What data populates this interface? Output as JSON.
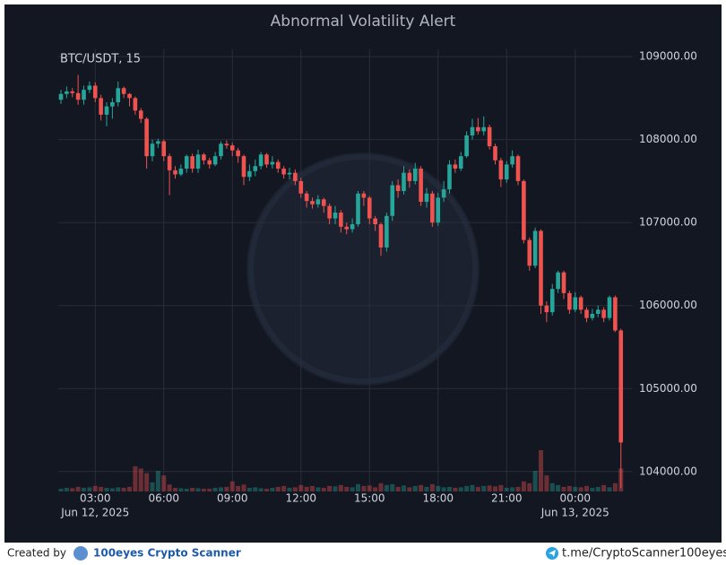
{
  "chart_data": {
    "type": "candlestick",
    "title": "Abnormal Volatility Alert",
    "symbol": "BTC/USDT, 15",
    "up_color": "#26a69a",
    "down_color": "#ef5350",
    "grid": true,
    "x": [
      "2025-06-12 01:30",
      "2025-06-12 01:45",
      "2025-06-12 02:00",
      "2025-06-12 02:15",
      "2025-06-12 02:30",
      "2025-06-12 02:45",
      "2025-06-12 03:00",
      "2025-06-12 03:15",
      "2025-06-12 03:30",
      "2025-06-12 03:45",
      "2025-06-12 04:00",
      "2025-06-12 04:15",
      "2025-06-12 04:30",
      "2025-06-12 04:45",
      "2025-06-12 05:00",
      "2025-06-12 05:15",
      "2025-06-12 05:30",
      "2025-06-12 05:45",
      "2025-06-12 06:00",
      "2025-06-12 06:15",
      "2025-06-12 06:30",
      "2025-06-12 06:45",
      "2025-06-12 07:00",
      "2025-06-12 07:15",
      "2025-06-12 07:30",
      "2025-06-12 07:45",
      "2025-06-12 08:00",
      "2025-06-12 08:15",
      "2025-06-12 08:30",
      "2025-06-12 08:45",
      "2025-06-12 09:00",
      "2025-06-12 09:15",
      "2025-06-12 09:30",
      "2025-06-12 09:45",
      "2025-06-12 10:00",
      "2025-06-12 10:15",
      "2025-06-12 10:30",
      "2025-06-12 10:45",
      "2025-06-12 11:00",
      "2025-06-12 11:15",
      "2025-06-12 11:30",
      "2025-06-12 11:45",
      "2025-06-12 12:00",
      "2025-06-12 12:15",
      "2025-06-12 12:30",
      "2025-06-12 12:45",
      "2025-06-12 13:00",
      "2025-06-12 13:15",
      "2025-06-12 13:30",
      "2025-06-12 13:45",
      "2025-06-12 14:00",
      "2025-06-12 14:15",
      "2025-06-12 14:30",
      "2025-06-12 14:45",
      "2025-06-12 15:00",
      "2025-06-12 15:15",
      "2025-06-12 15:30",
      "2025-06-12 15:45",
      "2025-06-12 16:00",
      "2025-06-12 16:15",
      "2025-06-12 16:30",
      "2025-06-12 16:45",
      "2025-06-12 17:00",
      "2025-06-12 17:15",
      "2025-06-12 17:30",
      "2025-06-12 17:45",
      "2025-06-12 18:00",
      "2025-06-12 18:15",
      "2025-06-12 18:30",
      "2025-06-12 18:45",
      "2025-06-12 19:00",
      "2025-06-12 19:15",
      "2025-06-12 19:30",
      "2025-06-12 19:45",
      "2025-06-12 20:00",
      "2025-06-12 20:15",
      "2025-06-12 20:30",
      "2025-06-12 20:45",
      "2025-06-12 21:00",
      "2025-06-12 21:15",
      "2025-06-12 21:30",
      "2025-06-12 21:45",
      "2025-06-12 22:00",
      "2025-06-12 22:15",
      "2025-06-12 22:30",
      "2025-06-12 22:45",
      "2025-06-12 23:00",
      "2025-06-12 23:15",
      "2025-06-12 23:30",
      "2025-06-12 23:45",
      "2025-06-13 00:00",
      "2025-06-13 00:15",
      "2025-06-13 00:30",
      "2025-06-13 00:45",
      "2025-06-13 01:00",
      "2025-06-13 01:15",
      "2025-06-13 01:30",
      "2025-06-13 01:45",
      "2025-06-13 02:00"
    ],
    "open": [
      108480,
      108550,
      108580,
      108560,
      108480,
      108600,
      108650,
      108500,
      108300,
      108400,
      108450,
      108620,
      108550,
      108500,
      108350,
      108250,
      107800,
      107950,
      107980,
      107800,
      107630,
      107580,
      107650,
      107800,
      107650,
      107820,
      107750,
      107700,
      107800,
      107950,
      107930,
      107870,
      107800,
      107550,
      107620,
      107680,
      107820,
      107700,
      107730,
      107650,
      107580,
      107600,
      107500,
      107350,
      107260,
      107220,
      107280,
      107200,
      107050,
      107120,
      106950,
      106920,
      106980,
      107350,
      107300,
      107050,
      106980,
      106700,
      107080,
      107450,
      107380,
      107600,
      107500,
      107650,
      107250,
      107350,
      107000,
      107300,
      107400,
      107700,
      107650,
      107800,
      108050,
      108150,
      108100,
      108150,
      107920,
      107750,
      107520,
      107700,
      107800,
      107500,
      106790,
      106480,
      106900,
      106000,
      105920,
      106200,
      106400,
      106150,
      105950,
      106100,
      105950,
      105850,
      105900,
      105950,
      105850,
      106100,
      105700
    ],
    "high": [
      108600,
      108640,
      108620,
      108780,
      108650,
      108700,
      108690,
      108540,
      108450,
      108500,
      108700,
      108640,
      108560,
      108520,
      108380,
      108270,
      108000,
      108010,
      108000,
      107830,
      107680,
      107700,
      107820,
      107830,
      107880,
      107840,
      107780,
      107850,
      107980,
      107990,
      107960,
      107900,
      107820,
      107700,
      107760,
      107850,
      107840,
      107800,
      107760,
      107680,
      107660,
      107640,
      107540,
      107380,
      107300,
      107330,
      107300,
      107230,
      107200,
      107150,
      107000,
      107050,
      107380,
      107380,
      107320,
      107080,
      107000,
      107120,
      107500,
      107520,
      107680,
      107640,
      107720,
      107680,
      107420,
      107380,
      107360,
      107500,
      107750,
      107760,
      107850,
      108100,
      108250,
      108260,
      108280,
      108180,
      107950,
      107780,
      107740,
      107870,
      107820,
      107520,
      106820,
      106940,
      106920,
      106050,
      106260,
      106420,
      106420,
      106180,
      106160,
      106120,
      105980,
      105960,
      106000,
      105980,
      106120,
      106120,
      105720
    ],
    "low": [
      108430,
      108500,
      108510,
      108420,
      108420,
      108560,
      108450,
      108230,
      108160,
      108250,
      108400,
      108500,
      108400,
      108300,
      108200,
      107650,
      107740,
      107900,
      107740,
      107330,
      107530,
      107560,
      107600,
      107600,
      107600,
      107700,
      107650,
      107680,
      107760,
      107890,
      107800,
      107720,
      107450,
      107500,
      107560,
      107640,
      107660,
      107650,
      107600,
      107530,
      107520,
      107450,
      107300,
      107180,
      107170,
      107180,
      107120,
      106980,
      106980,
      106880,
      106860,
      106880,
      106950,
      107200,
      106980,
      106900,
      106600,
      106650,
      107020,
      107300,
      107340,
      107420,
      107460,
      107200,
      107180,
      106950,
      106960,
      107250,
      107350,
      107600,
      107620,
      107780,
      108000,
      108060,
      108050,
      107880,
      107700,
      107430,
      107480,
      107660,
      107450,
      106750,
      106420,
      106450,
      105900,
      105800,
      105880,
      106150,
      106080,
      105900,
      105920,
      105900,
      105800,
      105820,
      105860,
      105800,
      105820,
      105680,
      103800
    ],
    "close": [
      108550,
      108580,
      108560,
      108480,
      108600,
      108650,
      108500,
      108300,
      108400,
      108450,
      108620,
      108550,
      108500,
      108350,
      108250,
      107800,
      107950,
      107980,
      107800,
      107630,
      107580,
      107650,
      107800,
      107650,
      107820,
      107750,
      107700,
      107800,
      107950,
      107930,
      107870,
      107800,
      107550,
      107620,
      107680,
      107820,
      107700,
      107730,
      107650,
      107580,
      107600,
      107500,
      107350,
      107260,
      107220,
      107280,
      107200,
      107050,
      107120,
      106950,
      106920,
      106980,
      107350,
      107300,
      107050,
      106980,
      106700,
      107080,
      107450,
      107380,
      107600,
      107500,
      107650,
      107250,
      107350,
      107000,
      107300,
      107400,
      107700,
      107650,
      107800,
      108050,
      108150,
      108100,
      108150,
      107920,
      107750,
      107520,
      107700,
      107800,
      107500,
      106790,
      106480,
      106900,
      106000,
      105920,
      106200,
      106400,
      106150,
      105950,
      106100,
      105950,
      105850,
      105900,
      105950,
      105850,
      106100,
      105700,
      104350
    ],
    "volume": [
      6,
      8,
      7,
      10,
      8,
      9,
      12,
      10,
      8,
      7,
      9,
      8,
      10,
      55,
      50,
      40,
      20,
      45,
      35,
      15,
      8,
      7,
      6,
      8,
      7,
      6,
      6,
      8,
      9,
      10,
      22,
      12,
      15,
      8,
      9,
      7,
      6,
      8,
      10,
      12,
      8,
      9,
      14,
      10,
      12,
      9,
      8,
      12,
      11,
      14,
      10,
      9,
      16,
      12,
      13,
      9,
      18,
      14,
      16,
      10,
      13,
      9,
      12,
      14,
      10,
      16,
      12,
      9,
      10,
      8,
      9,
      12,
      14,
      10,
      12,
      13,
      11,
      14,
      8,
      9,
      10,
      22,
      18,
      45,
      90,
      35,
      18,
      14,
      10,
      12,
      10,
      9,
      12,
      8,
      10,
      14,
      9,
      18,
      50
    ],
    "ylim": [
      103760,
      109120
    ],
    "yticks": [
      {
        "value": 104000,
        "label": "104000.00"
      },
      {
        "value": 105000,
        "label": "105000.00"
      },
      {
        "value": 106000,
        "label": "106000.00"
      },
      {
        "value": 107000,
        "label": "107000.00"
      },
      {
        "value": 108000,
        "label": "108000.00"
      },
      {
        "value": 109000,
        "label": "109000.00"
      }
    ],
    "xticks": [
      {
        "value": "2025-06-12 03:00",
        "label": "03:00"
      },
      {
        "value": "2025-06-12 06:00",
        "label": "06:00"
      },
      {
        "value": "2025-06-12 09:00",
        "label": "09:00"
      },
      {
        "value": "2025-06-12 12:00",
        "label": "12:00"
      },
      {
        "value": "2025-06-12 15:00",
        "label": "15:00"
      },
      {
        "value": "2025-06-12 18:00",
        "label": "18:00"
      },
      {
        "value": "2025-06-12 21:00",
        "label": "21:00"
      },
      {
        "value": "2025-06-13 00:00",
        "label": "00:00"
      }
    ],
    "date_labels": [
      {
        "value": "2025-06-12 03:00",
        "label": "Jun 12, 2025"
      },
      {
        "value": "2025-06-13 00:00",
        "label": "Jun 13, 2025"
      }
    ]
  },
  "footer": {
    "created_by": "Created by",
    "brand": "100eyes Crypto Scanner",
    "link": "t.me/CryptoScanner100eyes"
  }
}
